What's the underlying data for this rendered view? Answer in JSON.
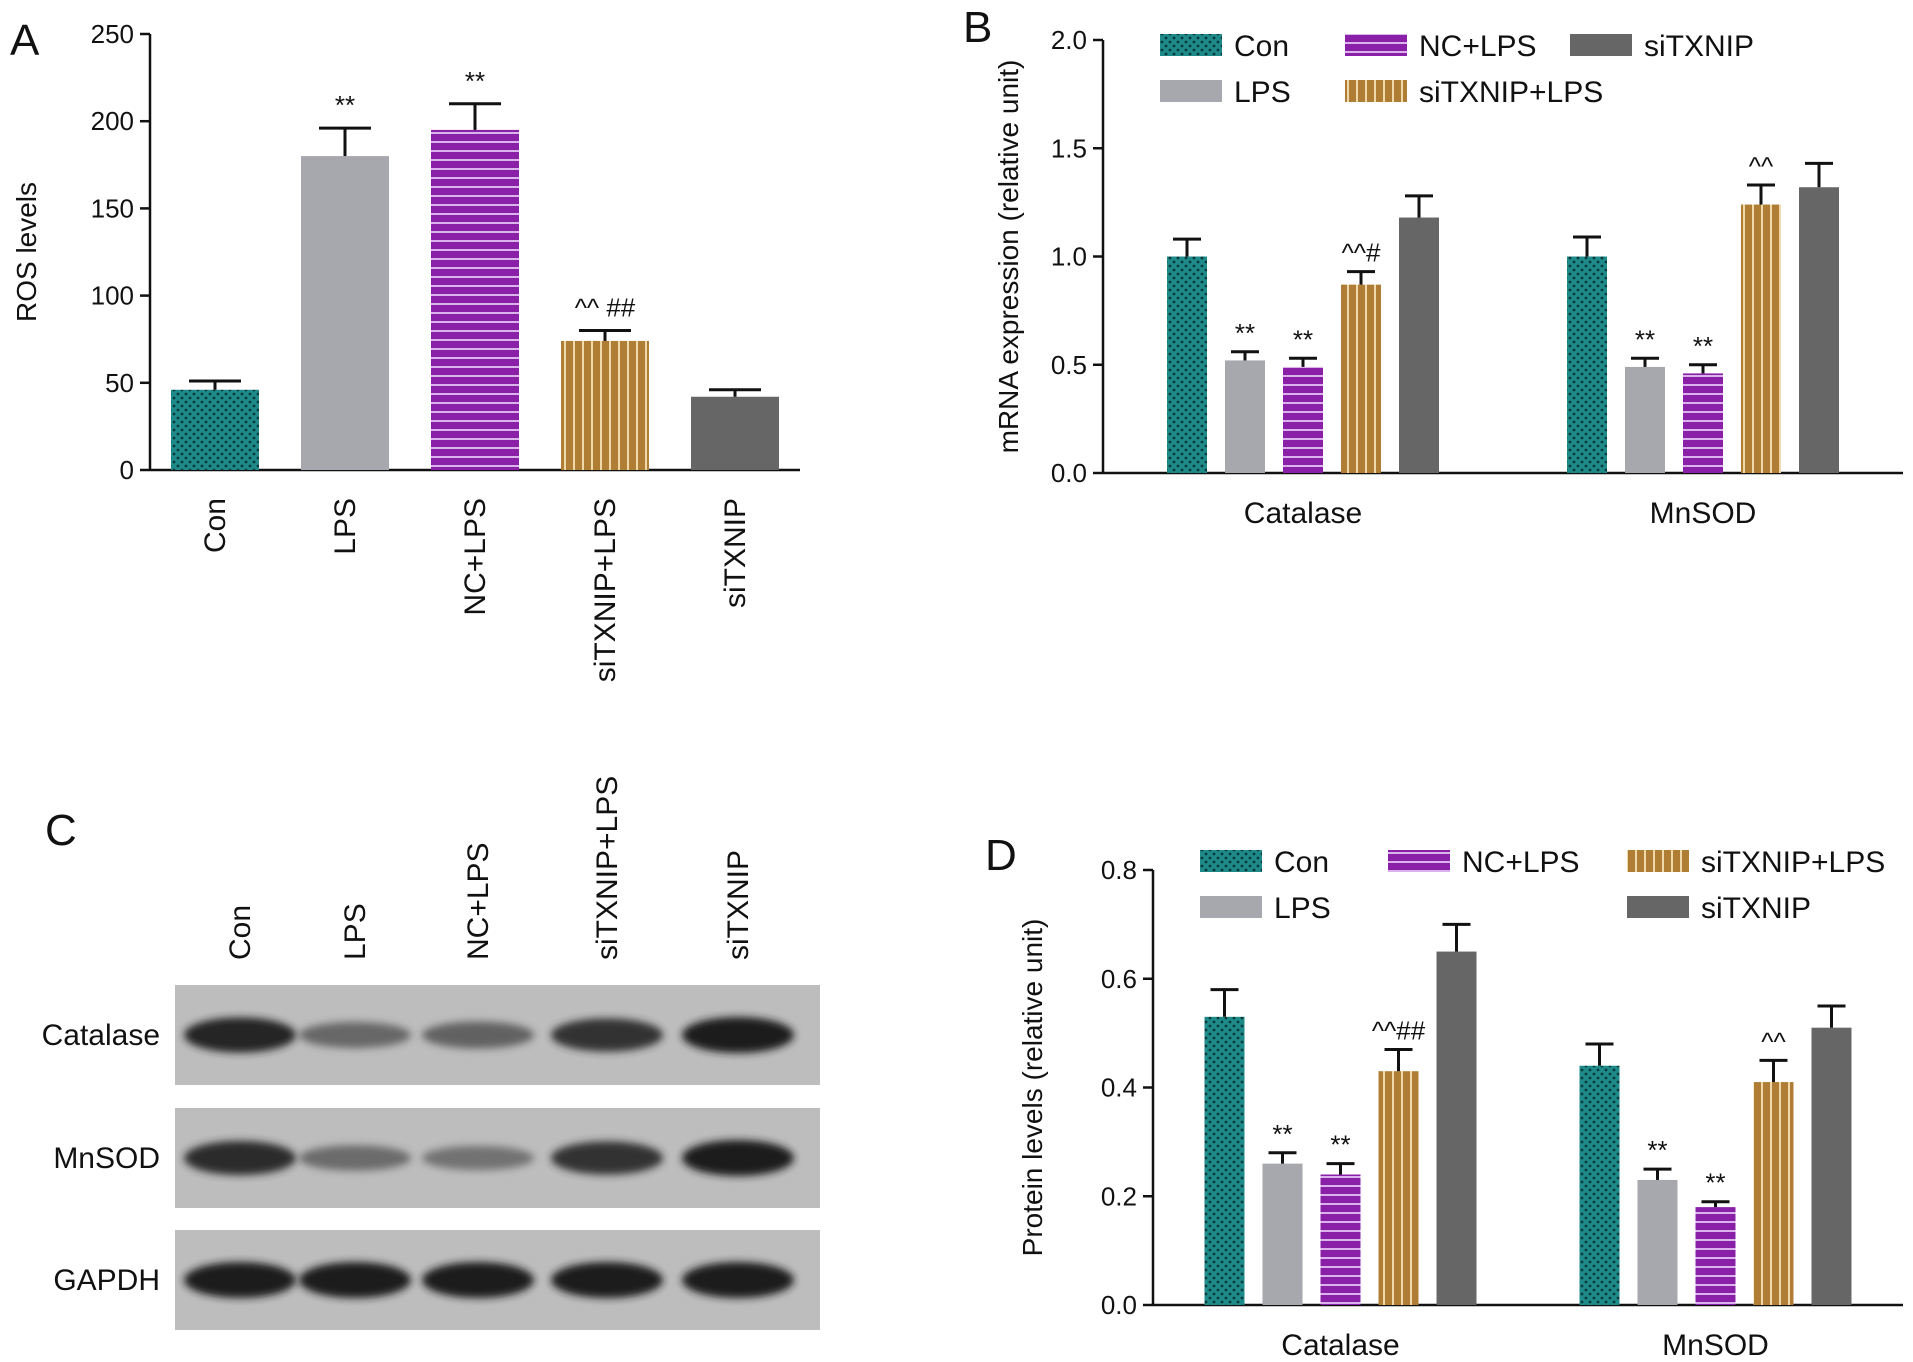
{
  "figure": {
    "panels": {
      "A": "A",
      "B": "B",
      "C": "C",
      "D": "D"
    },
    "group_colors": {
      "Con": "#1f8a8a",
      "LPS": "#a5a5ab",
      "NC+LPS": "#8a1fa8",
      "siTXNIP+LPS": "#b07d35",
      "siTXNIP": "#666666"
    }
  },
  "chart_data": [
    {
      "panel": "A",
      "type": "bar",
      "categories": [
        "Con",
        "LPS",
        "NC+LPS",
        "siTXNIP+LPS",
        "siTXNIP"
      ],
      "values": [
        46,
        180,
        195,
        74,
        42
      ],
      "errors": [
        5,
        16,
        15,
        6,
        4
      ],
      "annotations": [
        "",
        "**",
        "**",
        "^^ ##",
        ""
      ],
      "ylabel": "ROS levels",
      "xlabel": "",
      "title": "",
      "ylim": [
        0,
        250
      ],
      "yticks": [
        0,
        50,
        100,
        150,
        200,
        250
      ],
      "grid": false
    },
    {
      "panel": "B",
      "type": "bar",
      "categories": [
        "Catalase",
        "MnSOD"
      ],
      "series": [
        {
          "name": "Con",
          "values": [
            1.0,
            1.0
          ],
          "errors": [
            0.08,
            0.09
          ],
          "annotations": [
            "",
            ""
          ]
        },
        {
          "name": "LPS",
          "values": [
            0.52,
            0.49
          ],
          "errors": [
            0.04,
            0.04
          ],
          "annotations": [
            "**",
            "**"
          ]
        },
        {
          "name": "NC+LPS",
          "values": [
            0.49,
            0.46
          ],
          "errors": [
            0.04,
            0.04
          ],
          "annotations": [
            "**",
            "**"
          ]
        },
        {
          "name": "siTXNIP+LPS",
          "values": [
            0.87,
            1.24
          ],
          "errors": [
            0.06,
            0.09
          ],
          "annotations": [
            "^^#",
            "^^"
          ]
        },
        {
          "name": "siTXNIP",
          "values": [
            1.18,
            1.32
          ],
          "errors": [
            0.1,
            0.11
          ],
          "annotations": [
            "",
            ""
          ]
        }
      ],
      "ylabel": "mRNA expression (relative unit)",
      "xlabel": "",
      "title": "",
      "ylim": [
        0,
        2.0
      ],
      "yticks": [
        "0.0",
        "0.5",
        "1.0",
        "1.5",
        "2.0"
      ],
      "legend": "top",
      "grid": false
    },
    {
      "panel": "D",
      "type": "bar",
      "categories": [
        "Catalase",
        "MnSOD"
      ],
      "series": [
        {
          "name": "Con",
          "values": [
            0.53,
            0.44
          ],
          "errors": [
            0.05,
            0.04
          ],
          "annotations": [
            "",
            ""
          ]
        },
        {
          "name": "LPS",
          "values": [
            0.26,
            0.23
          ],
          "errors": [
            0.02,
            0.02
          ],
          "annotations": [
            "**",
            "**"
          ]
        },
        {
          "name": "NC+LPS",
          "values": [
            0.24,
            0.18
          ],
          "errors": [
            0.02,
            0.01
          ],
          "annotations": [
            "**",
            "**"
          ]
        },
        {
          "name": "siTXNIP+LPS",
          "values": [
            0.43,
            0.41
          ],
          "errors": [
            0.04,
            0.04
          ],
          "annotations": [
            "^^##",
            "^^"
          ]
        },
        {
          "name": "siTXNIP",
          "values": [
            0.65,
            0.51
          ],
          "errors": [
            0.05,
            0.04
          ],
          "annotations": [
            "",
            ""
          ]
        }
      ],
      "ylabel": "Protein levels (relative unit)",
      "xlabel": "",
      "title": "",
      "ylim": [
        0,
        0.8
      ],
      "yticks": [
        "0.0",
        "0.2",
        "0.4",
        "0.6",
        "0.8"
      ],
      "legend": "top",
      "grid": false
    }
  ],
  "blot": {
    "panel": "C",
    "lanes": [
      "Con",
      "LPS",
      "NC+LPS",
      "siTXNIP+LPS",
      "siTXNIP"
    ],
    "rows": [
      {
        "label": "Catalase",
        "intensities": [
          0.95,
          0.45,
          0.5,
          0.85,
          1.0
        ]
      },
      {
        "label": "MnSOD",
        "intensities": [
          0.9,
          0.42,
          0.35,
          0.85,
          1.0
        ]
      },
      {
        "label": "GAPDH",
        "intensities": [
          1.0,
          1.0,
          1.0,
          1.0,
          1.0
        ]
      }
    ]
  },
  "icons": {
    "legend_swatch": "legend-swatch-icon"
  }
}
